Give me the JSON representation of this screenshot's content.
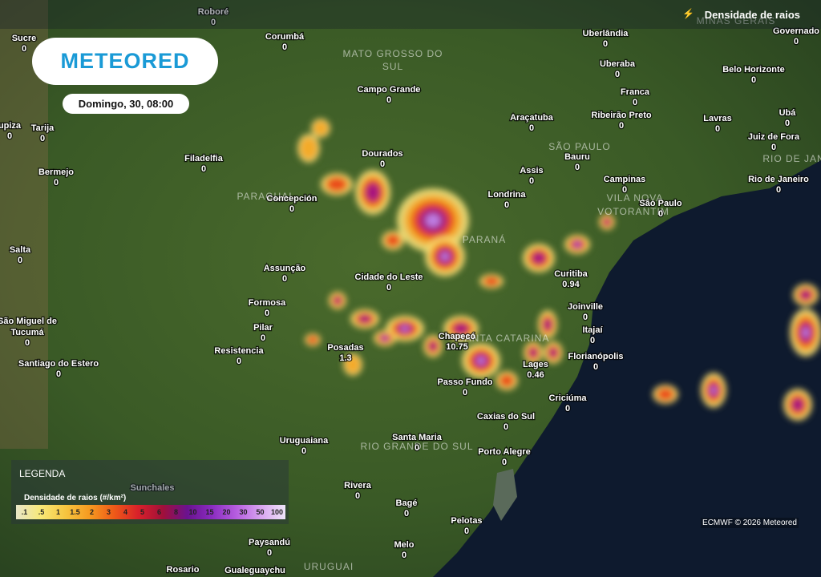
{
  "header": {
    "title": "Densidade de raios",
    "logo": "METEORED",
    "date": "Domingo, 30, 08:00"
  },
  "cities": [
    {
      "name": "Roboré",
      "value": 0
    },
    {
      "name": "Corumbá",
      "value": 0
    },
    {
      "name": "Sucre",
      "value": 0
    },
    {
      "name": "Uberlândia",
      "value": 0
    },
    {
      "name": "Governado",
      "value": 0
    },
    {
      "name": "Uberaba",
      "value": 0
    },
    {
      "name": "Belo Horizonte",
      "value": 0
    },
    {
      "name": "Campo Grande",
      "value": 0
    },
    {
      "name": "Franca",
      "value": 0
    },
    {
      "name": "Araçatuba",
      "value": 0
    },
    {
      "name": "Ribeirão Preto",
      "value": 0
    },
    {
      "name": "Lavras",
      "value": 0
    },
    {
      "name": "Ubá",
      "value": 0
    },
    {
      "name": "upiza",
      "value": 0
    },
    {
      "name": "Tarija",
      "value": 0
    },
    {
      "name": "Juiz de Fora",
      "value": 0
    },
    {
      "name": "Dourados",
      "value": 0
    },
    {
      "name": "Filadelfia",
      "value": 0
    },
    {
      "name": "Bauru",
      "value": 0
    },
    {
      "name": "Assis",
      "value": 0
    },
    {
      "name": "Bermejo",
      "value": 0
    },
    {
      "name": "Campinas",
      "value": 0
    },
    {
      "name": "Rio de Janeiro",
      "value": 0
    },
    {
      "name": "Concepción",
      "value": 0
    },
    {
      "name": "Londrina",
      "value": 0
    },
    {
      "name": "São Paulo",
      "value": 0
    },
    {
      "name": "Salta",
      "value": 0
    },
    {
      "name": "Assunção",
      "value": 0
    },
    {
      "name": "Curitiba",
      "value": 0.94
    },
    {
      "name": "Cidade do Leste",
      "value": 0
    },
    {
      "name": "Formosa",
      "value": 0
    },
    {
      "name": "Joinville",
      "value": 0
    },
    {
      "name": "São Miguel de",
      "value": null
    },
    {
      "name": "Tucumá",
      "value": 0
    },
    {
      "name": "Pilar",
      "value": 0
    },
    {
      "name": "Itajaí",
      "value": 0
    },
    {
      "name": "Resistencia",
      "value": 0
    },
    {
      "name": "Posadas",
      "value": 1.3
    },
    {
      "name": "Chapecó",
      "value": 10.75
    },
    {
      "name": "Lages",
      "value": 0.46
    },
    {
      "name": "Florianópolis",
      "value": 0
    },
    {
      "name": "Santiago do Estero",
      "value": 0
    },
    {
      "name": "Passo Fundo",
      "value": 0
    },
    {
      "name": "Criciúma",
      "value": 0
    },
    {
      "name": "Caxias do Sul",
      "value": 0
    },
    {
      "name": "Uruguaiana",
      "value": 0
    },
    {
      "name": "Santa Maria",
      "value": 0
    },
    {
      "name": "Porto Alegre",
      "value": 0
    },
    {
      "name": "Sunchales",
      "value": null
    },
    {
      "name": "Rivera",
      "value": 0
    },
    {
      "name": "Bagé",
      "value": 0
    },
    {
      "name": "Pelotas",
      "value": 0
    },
    {
      "name": "Paysandú",
      "value": 0
    },
    {
      "name": "Melo",
      "value": 0
    },
    {
      "name": "Rosario",
      "value": null
    },
    {
      "name": "Gualeguaychu",
      "value": null
    }
  ],
  "regions": [
    "MATO GROSSO DO",
    "SUL",
    "SÃO PAULO",
    "MINAS GERAIS",
    "RIO DE JAN",
    "PARAGUAI",
    "PARANÁ",
    "SANTA CATARINA",
    "RIO GRANDE DO SUL",
    "URUGUAI",
    "VILA NOVA",
    "VOTORANTIM"
  ],
  "legend": {
    "title": "LEGENDA",
    "subtitle": "Densidade de raios (#/km²)",
    "stops": [
      ".1",
      ".5",
      "1",
      "1.5",
      "2",
      "3",
      "4",
      "5",
      "6",
      "8",
      "10",
      "15",
      "20",
      "30",
      "50",
      "100"
    ]
  },
  "credit": "ECMWF © 2026 Meteored"
}
